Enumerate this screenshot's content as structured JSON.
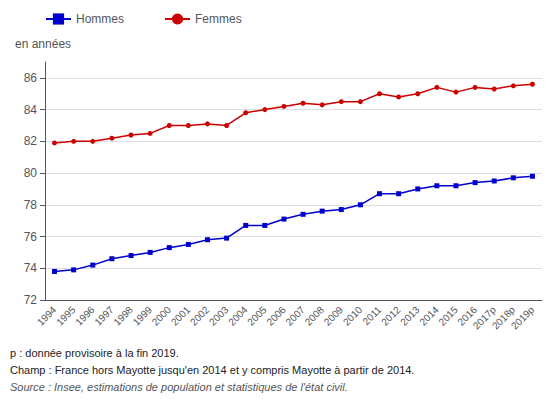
{
  "chart_data": {
    "type": "line",
    "categories": [
      "1994",
      "1995",
      "1996",
      "1997",
      "1998",
      "1999",
      "2000",
      "2001",
      "2002",
      "2003",
      "2004",
      "2005",
      "2006",
      "2007",
      "2008",
      "2009",
      "2010",
      "2011",
      "2012",
      "2013",
      "2014",
      "2015",
      "2016",
      "2017p",
      "2018p",
      "2019p"
    ],
    "series": [
      {
        "name": "Hommes",
        "color": "#0000cc",
        "marker": "square",
        "values": [
          73.8,
          73.9,
          74.2,
          74.6,
          74.8,
          75.0,
          75.3,
          75.5,
          75.8,
          75.9,
          76.7,
          76.7,
          77.1,
          77.4,
          77.6,
          77.7,
          78.0,
          78.7,
          78.7,
          79.0,
          79.2,
          79.2,
          79.4,
          79.5,
          79.7,
          79.8
        ]
      },
      {
        "name": "Femmes",
        "color": "#cc0000",
        "marker": "circle",
        "values": [
          81.9,
          82.0,
          82.0,
          82.2,
          82.4,
          82.5,
          83.0,
          83.0,
          83.1,
          83.0,
          83.8,
          84.0,
          84.2,
          84.4,
          84.3,
          84.5,
          84.5,
          85.0,
          84.8,
          85.0,
          85.4,
          85.1,
          85.4,
          85.3,
          85.5,
          85.6
        ]
      }
    ],
    "ylabel": "en années",
    "ylim": [
      72,
      87
    ],
    "yticks": [
      72,
      74,
      76,
      78,
      80,
      82,
      84,
      86
    ],
    "grid": true,
    "legend": "upper left",
    "annotations": [
      "p : donnée provisoire à la fin 2019.",
      "Champ : France hors Mayotte jusqu'en 2014 et y compris Mayotte à partir de 2014.",
      "Source : Insee, estimations de population et statistiques de l'état civil."
    ]
  }
}
